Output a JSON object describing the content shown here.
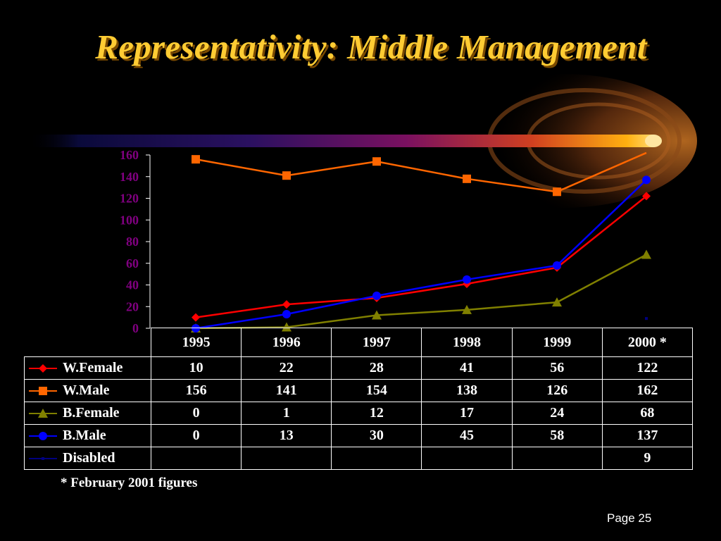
{
  "title": "Representativity: Middle Management",
  "footnote": "* February 2001 figures",
  "page_label": "Page 25",
  "colors": {
    "background": "#000000",
    "title": "#FFCC33",
    "axis_text": "#800080",
    "w_female": "#FF0000",
    "w_male": "#FF6600",
    "b_female": "#808000",
    "b_male": "#0000FF",
    "disabled": "#000080"
  },
  "chart_data": {
    "type": "line",
    "title": "",
    "xlabel": "",
    "ylabel": "",
    "ylim": [
      0,
      160
    ],
    "yticks": [
      0,
      20,
      40,
      60,
      80,
      100,
      120,
      140,
      160
    ],
    "grid": false,
    "legend": "data-table",
    "categories": [
      "1995",
      "1996",
      "1997",
      "1998",
      "1999",
      "2000 *"
    ],
    "series": [
      {
        "name": "W.Female",
        "values": [
          10,
          22,
          28,
          41,
          56,
          122
        ],
        "color": "#FF0000",
        "marker": "diamond"
      },
      {
        "name": "W.Male",
        "values": [
          156,
          141,
          154,
          138,
          126,
          162
        ],
        "color": "#FF6600",
        "marker": "square"
      },
      {
        "name": "B.Female",
        "values": [
          0,
          1,
          12,
          17,
          24,
          68
        ],
        "color": "#808000",
        "marker": "triangle"
      },
      {
        "name": "B.Male",
        "values": [
          0,
          13,
          30,
          45,
          58,
          137
        ],
        "color": "#0000FF",
        "marker": "circle"
      },
      {
        "name": "Disabled",
        "values": [
          null,
          null,
          null,
          null,
          null,
          9
        ],
        "color": "#000080",
        "marker": "dot"
      }
    ]
  },
  "table_rows": [
    [
      "10",
      "22",
      "28",
      "41",
      "56",
      "122"
    ],
    [
      "156",
      "141",
      "154",
      "138",
      "126",
      "162"
    ],
    [
      "0",
      "1",
      "12",
      "17",
      "24",
      "68"
    ],
    [
      "0",
      "13",
      "30",
      "45",
      "58",
      "137"
    ],
    [
      "",
      "",
      "",
      "",
      "",
      "9"
    ]
  ]
}
